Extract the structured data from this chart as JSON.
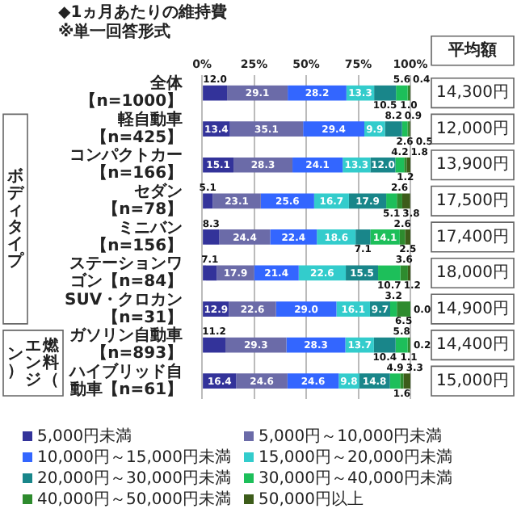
{
  "chart_data": {
    "type": "bar",
    "orientation": "horizontal",
    "stacked": true,
    "title": "◆1ヵ月あたりの維持費",
    "subtitle": "※単一回答形式",
    "categories": [
      "全体【n=1000】",
      "軽自動車【n=425】",
      "コンパクトカー【n=166】",
      "セダン【n=78】",
      "ミニバン【n=156】",
      "ステーションワゴン【n=84】",
      "SUV・クロカン【n=31】",
      "ガソリン自動車【n=893】",
      "ハイブリッド自動車【n=61】"
    ],
    "series": [
      {
        "name": "5,000円未満",
        "color": "#33339a",
        "values": [
          12.0,
          13.4,
          15.1,
          5.1,
          8.3,
          7.1,
          12.9,
          11.2,
          16.4
        ],
        "value_labels": [
          "12.0",
          "13.4",
          "15.1",
          "5.1",
          "8.3",
          "7.1",
          "12.9",
          "11.2",
          "16.4"
        ]
      },
      {
        "name": "5,000円～10,000円未満",
        "color": "#6b6ba8",
        "values": [
          29.1,
          35.1,
          28.3,
          23.1,
          24.4,
          17.9,
          22.6,
          29.3,
          24.6
        ],
        "value_labels": [
          "29.1",
          "35.1",
          "28.3",
          "23.1",
          "24.4",
          "17.9",
          "22.6",
          "29.3",
          "24.6"
        ]
      },
      {
        "name": "10,000円～15,000円未満",
        "color": "#3366ff",
        "values": [
          28.2,
          29.4,
          24.1,
          25.6,
          22.4,
          21.4,
          29.0,
          28.3,
          24.6
        ],
        "value_labels": [
          "28.2",
          "29.4",
          "24.1",
          "25.6",
          "22.4",
          "21.4",
          "29.0",
          "28.3",
          "24.6"
        ]
      },
      {
        "name": "15,000円～20,000円未満",
        "color": "#33cccc",
        "values": [
          13.3,
          9.9,
          13.3,
          16.7,
          18.6,
          22.6,
          16.1,
          13.7,
          9.8
        ],
        "value_labels": [
          "13.3",
          "9.9",
          "13.3",
          "16.7",
          "18.6",
          "22.6",
          "16.1",
          "13.7",
          "9.8"
        ]
      },
      {
        "name": "20,000円～30,000円未満",
        "color": "#19868a",
        "values": [
          10.5,
          8.2,
          12.0,
          17.9,
          7.1,
          15.5,
          9.7,
          10.4,
          14.8
        ],
        "value_labels": [
          "10.5",
          "8.2",
          "12.0",
          "17.9",
          "7.1",
          "15.5",
          "9.7",
          "10.4",
          "14.8"
        ]
      },
      {
        "name": "30,000円～40,000円未満",
        "color": "#1dbf5a",
        "values": [
          5.6,
          2.6,
          4.2,
          5.1,
          14.1,
          10.7,
          3.2,
          5.8,
          4.9
        ],
        "value_labels": [
          "5.6",
          "2.6",
          "4.2",
          "5.1",
          "14.1",
          "10.7",
          "3.2",
          "5.8",
          "4.9"
        ]
      },
      {
        "name": "40,000円～50,000円未満",
        "color": "#2e8b2e",
        "values": [
          1.0,
          0.9,
          1.2,
          2.6,
          2.6,
          3.6,
          6.5,
          1.1,
          1.6
        ],
        "value_labels": [
          "1.0",
          "0.9",
          "1.2",
          "2.6",
          "2.6",
          "3.6",
          "6.5",
          "1.1",
          "1.6"
        ]
      },
      {
        "name": "50,000円以上",
        "color": "#3d5c1a",
        "values": [
          0.4,
          0.5,
          1.8,
          3.8,
          2.5,
          1.2,
          0.0,
          0.2,
          3.3
        ],
        "value_labels": [
          "0.4",
          "0.5",
          "1.8",
          "3.8",
          "2.5",
          "1.2",
          "0.0",
          "0.2",
          "3.3"
        ]
      }
    ],
    "xlim": [
      0,
      100
    ],
    "xticks": [
      {
        "value": 0,
        "label": "0%"
      },
      {
        "value": 25,
        "label": "25%"
      },
      {
        "value": 50,
        "label": "50%"
      },
      {
        "value": 75,
        "label": "75%"
      },
      {
        "value": 100,
        "label": "100%"
      }
    ],
    "grid": "x",
    "legend": "bottom",
    "annotations": [
      "平均額",
      "14,300円",
      "12,000円",
      "13,900円",
      "17,500円",
      "17,400円",
      "18,000円",
      "14,900円",
      "14,400円",
      "15,000円",
      "ボディタイプ",
      "燃料（エンジン）"
    ]
  }
}
